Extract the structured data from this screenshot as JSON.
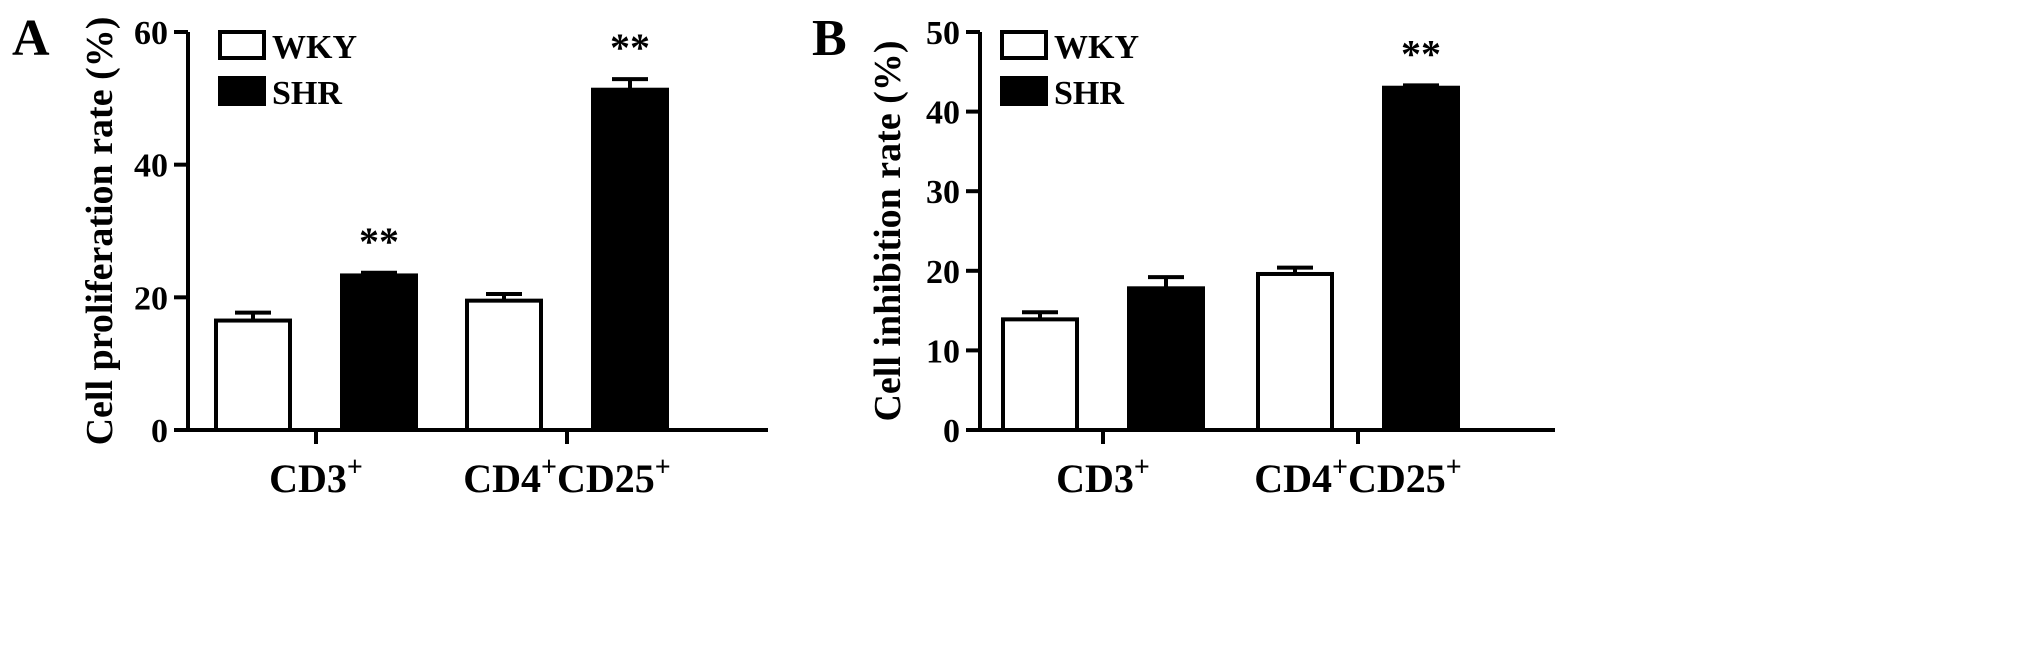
{
  "chart_data": [
    {
      "type": "bar",
      "panel_label": "A",
      "ylabel": "Cell proliferation rate (%)",
      "ylim": [
        0,
        60
      ],
      "yticks": [
        "0",
        "20",
        "40",
        "60"
      ],
      "categories": [
        {
          "base": "CD3",
          "sup1": "+",
          "mid": "",
          "sup2": ""
        },
        {
          "base": "CD4",
          "sup1": "+",
          "mid": "CD25",
          "sup2": "+"
        }
      ],
      "series": [
        {
          "name": "WKY",
          "fill": "#ffffff",
          "values": [
            16.5,
            19.5
          ],
          "errors": [
            1.2,
            1.0
          ]
        },
        {
          "name": "SHR",
          "fill": "#000000",
          "values": [
            23.3,
            51.3
          ],
          "errors": [
            0.4,
            1.6
          ]
        }
      ],
      "annotations": [
        {
          "series": 1,
          "category": 0,
          "text": "**"
        },
        {
          "series": 1,
          "category": 1,
          "text": "**"
        }
      ],
      "legend": "top-left"
    },
    {
      "type": "bar",
      "panel_label": "B",
      "ylabel": "Cell inhibition rate (%)",
      "ylim": [
        0,
        50
      ],
      "yticks": [
        "0",
        "10",
        "20",
        "30",
        "40",
        "50"
      ],
      "categories": [
        {
          "base": "CD3",
          "sup1": "+",
          "mid": "",
          "sup2": ""
        },
        {
          "base": "CD4",
          "sup1": "+",
          "mid": "CD25",
          "sup2": "+"
        }
      ],
      "series": [
        {
          "name": "WKY",
          "fill": "#ffffff",
          "values": [
            13.9,
            19.6
          ],
          "errors": [
            0.9,
            0.8
          ]
        },
        {
          "name": "SHR",
          "fill": "#000000",
          "values": [
            17.8,
            43.0
          ],
          "errors": [
            1.4,
            0.3
          ]
        }
      ],
      "annotations": [
        {
          "series": 1,
          "category": 1,
          "text": "**"
        }
      ],
      "legend": "top-left"
    }
  ]
}
